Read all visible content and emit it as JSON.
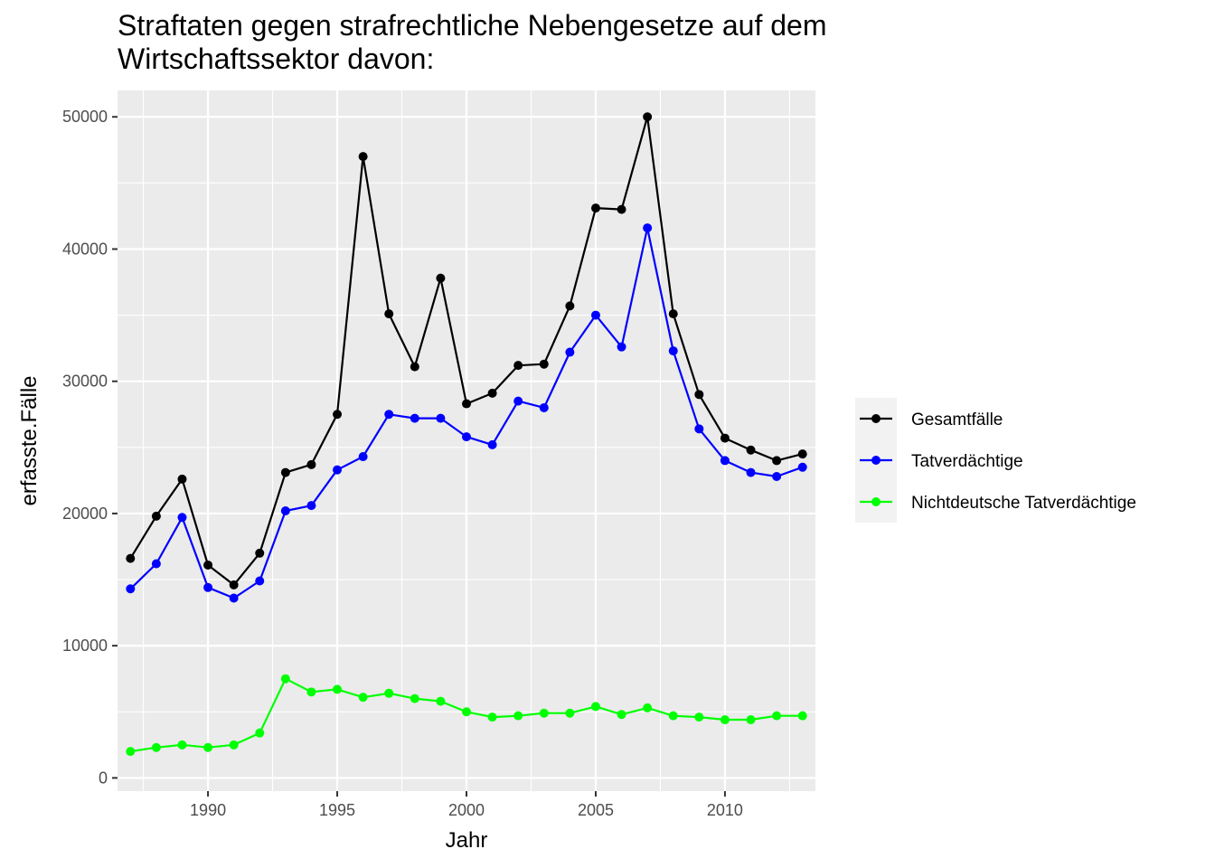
{
  "chart_data": {
    "type": "line",
    "title": "Straftaten gegen strafrechtliche Nebengesetze auf dem\nWirtschaftssektor davon:",
    "xlabel": "Jahr",
    "ylabel": "erfasste.Fälle",
    "xlim": [
      1986.5,
      2013.5
    ],
    "ylim": [
      -1000,
      52000
    ],
    "x_ticks": [
      1990,
      1995,
      2000,
      2005,
      2010
    ],
    "y_ticks": [
      0,
      10000,
      20000,
      30000,
      40000,
      50000
    ],
    "grid": true,
    "legend_position": "right",
    "x": [
      1987,
      1988,
      1989,
      1990,
      1991,
      1992,
      1993,
      1994,
      1995,
      1996,
      1997,
      1998,
      1999,
      2000,
      2001,
      2002,
      2003,
      2004,
      2005,
      2006,
      2007,
      2008,
      2009,
      2010,
      2011,
      2012,
      2013
    ],
    "series": [
      {
        "name": "Gesamtfälle",
        "color": "#000000",
        "values": [
          16600,
          19800,
          22600,
          16100,
          14600,
          17000,
          23100,
          23700,
          27500,
          47000,
          35100,
          31100,
          37800,
          28300,
          29100,
          31200,
          31300,
          35700,
          43100,
          43000,
          50000,
          35100,
          29000,
          25700,
          24800,
          24000,
          24500
        ]
      },
      {
        "name": "Tatverdächtige",
        "color": "#0000ff",
        "values": [
          14300,
          16200,
          19700,
          14400,
          13600,
          14900,
          20200,
          20600,
          23300,
          24300,
          27500,
          27200,
          27200,
          25800,
          25200,
          28500,
          28000,
          32200,
          35000,
          32600,
          41600,
          32300,
          26400,
          24000,
          23100,
          22800,
          23500
        ]
      },
      {
        "name": "Nichtdeutsche Tatverdächtige",
        "color": "#00ff00",
        "values": [
          2000,
          2300,
          2500,
          2300,
          2500,
          3400,
          7500,
          6500,
          6700,
          6100,
          6400,
          6000,
          5800,
          5000,
          4600,
          4700,
          4900,
          4900,
          5400,
          4800,
          5300,
          4700,
          4600,
          4400,
          4400,
          4700,
          4700
        ]
      }
    ]
  }
}
